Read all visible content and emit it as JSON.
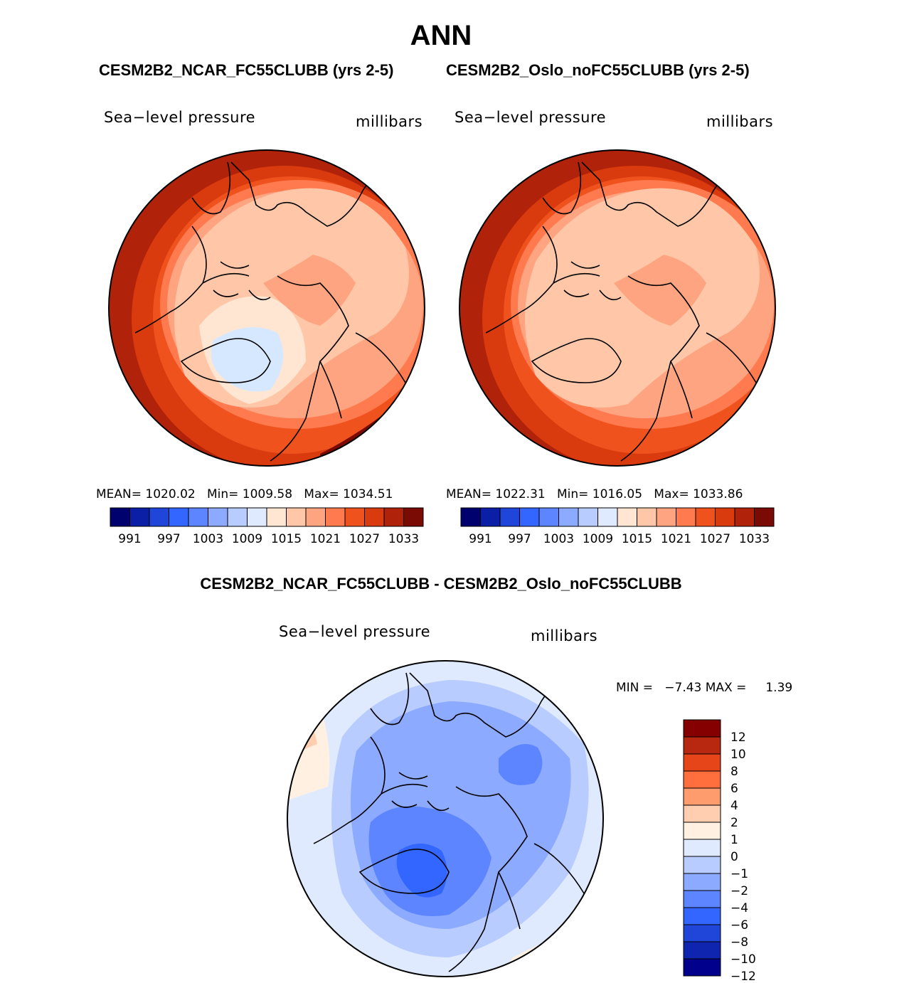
{
  "title": "ANN",
  "panels": [
    {
      "case_title": "CESM2B2_NCAR_FC55CLUBB (yrs 2-5)",
      "variable": "Sea−level pressure",
      "units": "millibars",
      "stats": {
        "mean_label": "MEAN=",
        "mean": "1020.02",
        "min_label": "Min=",
        "min": "1009.58",
        "max_label": "Max=",
        "max": "1034.51"
      }
    },
    {
      "case_title": "CESM2B2_Oslo_noFC55CLUBB (yrs 2-5)",
      "variable": "Sea−level pressure",
      "units": "millibars",
      "stats": {
        "mean_label": "MEAN=",
        "mean": "1022.31",
        "min_label": "Min=",
        "min": "1016.05",
        "max_label": "Max=",
        "max": "1033.86"
      }
    }
  ],
  "diff_panel": {
    "title": "CESM2B2_NCAR_FC55CLUBB - CESM2B2_Oslo_noFC55CLUBB",
    "variable": "Sea−level pressure",
    "units": "millibars",
    "min_max_text": "MIN =   −7.43 MAX =     1.39"
  },
  "colors": {
    "abs_bar": [
      "#00006e",
      "#0a1fa6",
      "#1f46d9",
      "#3366ff",
      "#5c85ff",
      "#8caaff",
      "#b8ccff",
      "#dfeaff",
      "#ffe6d2",
      "#ffc7a8",
      "#ffa480",
      "#ff7a4f",
      "#f0521e",
      "#d93a0e",
      "#b0230a",
      "#7a0a04"
    ],
    "diff_bar": [
      "#00008c",
      "#0f25b0",
      "#1f46d9",
      "#3366ff",
      "#5c85ff",
      "#8caaff",
      "#b8ccff",
      "#dfeaff",
      "#fff0e2",
      "#ffcdb0",
      "#ff9c6e",
      "#ff6e3c",
      "#e6451a",
      "#b82710",
      "#850000"
    ]
  },
  "chart_data": [
    {
      "type": "heatmap",
      "subtype": "polar-stereographic-contour",
      "title": "CESM2B2_NCAR_FC55CLUBB (yrs 2-5)",
      "variable": "Sea-level pressure",
      "units": "millibars",
      "season": "ANN",
      "mean": 1020.02,
      "min": 1009.58,
      "max": 1034.51,
      "colorbar_levels": [
        991,
        994,
        997,
        1000,
        1003,
        1006,
        1009,
        1012,
        1015,
        1018,
        1021,
        1024,
        1027,
        1030,
        1033
      ],
      "colorbar_labels": [
        "991",
        "997",
        "1003",
        "1009",
        "1015",
        "1021",
        "1027",
        "1033"
      ],
      "colorbar_orientation": "horizontal"
    },
    {
      "type": "heatmap",
      "subtype": "polar-stereographic-contour",
      "title": "CESM2B2_Oslo_noFC55CLUBB (yrs 2-5)",
      "variable": "Sea-level pressure",
      "units": "millibars",
      "season": "ANN",
      "mean": 1022.31,
      "min": 1016.05,
      "max": 1033.86,
      "colorbar_levels": [
        991,
        994,
        997,
        1000,
        1003,
        1006,
        1009,
        1012,
        1015,
        1018,
        1021,
        1024,
        1027,
        1030,
        1033
      ],
      "colorbar_labels": [
        "991",
        "997",
        "1003",
        "1009",
        "1015",
        "1021",
        "1027",
        "1033"
      ],
      "colorbar_orientation": "horizontal"
    },
    {
      "type": "heatmap",
      "subtype": "polar-stereographic-contour",
      "title": "CESM2B2_NCAR_FC55CLUBB - CESM2B2_Oslo_noFC55CLUBB",
      "variable": "Sea-level pressure",
      "units": "millibars",
      "min": -7.43,
      "max": 1.39,
      "colorbar_levels": [
        12,
        10,
        8,
        6,
        4,
        2,
        1,
        0,
        -1,
        -2,
        -4,
        -6,
        -8,
        -10,
        -12
      ],
      "colorbar_labels": [
        "12",
        "10",
        "8",
        "6",
        "4",
        "2",
        "1",
        "0",
        "−1",
        "−2",
        "−4",
        "−6",
        "−8",
        "−10",
        "−12"
      ],
      "colorbar_orientation": "vertical"
    }
  ]
}
